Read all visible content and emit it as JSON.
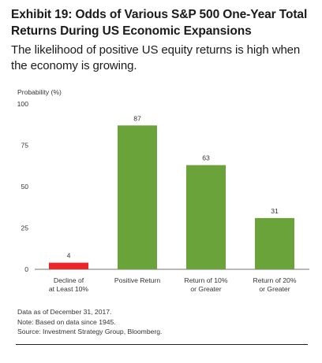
{
  "title": "Exhibit 19: Odds of Various S&P 500 One-Year Total Returns During US Economic Expansions",
  "subtitle": "The likelihood of positive US equity returns is high when the economy is growing.",
  "chart_data": {
    "type": "bar",
    "ylabel": "Probability (%)",
    "ylim": [
      0,
      100
    ],
    "yticks": [
      0,
      25,
      50,
      75,
      100
    ],
    "grid": false,
    "categories": [
      [
        "Decline of",
        "at Least 10%"
      ],
      [
        "Positive Return"
      ],
      [
        "Return of 10%",
        "or Greater"
      ],
      [
        "Return of 20%",
        "or Greater"
      ]
    ],
    "values": [
      4,
      87,
      63,
      31
    ],
    "colors": [
      "#e8262b",
      "#6aa33a",
      "#6aa33a",
      "#6aa33a"
    ]
  },
  "notes": [
    "Data as of December 31, 2017.",
    "Note: Based on data since 1945.",
    "Source: Investment Strategy Group, Bloomberg."
  ]
}
